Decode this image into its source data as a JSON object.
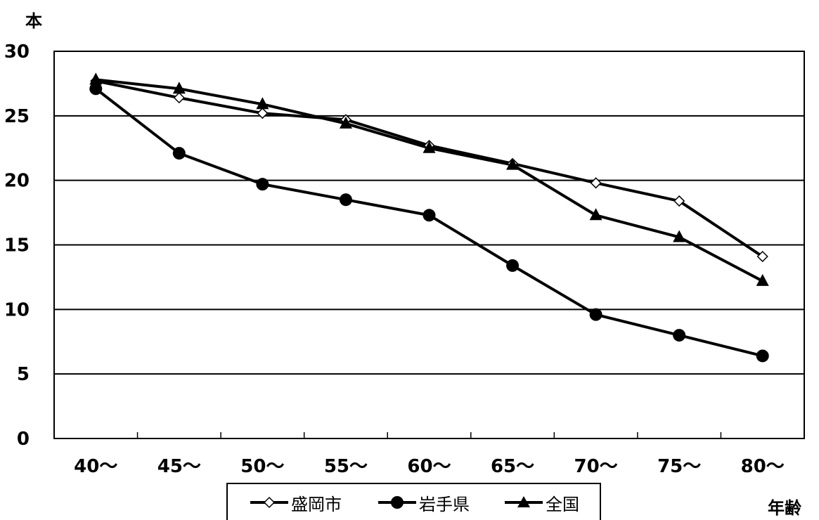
{
  "chart_data": {
    "type": "line",
    "title": "",
    "ylabel": "本",
    "xlabel": "年齢",
    "ylim": [
      0,
      30
    ],
    "yticks": [
      "0",
      "5",
      "10",
      "15",
      "20",
      "25",
      "30"
    ],
    "categories": [
      "40〜",
      "45〜",
      "50〜",
      "55〜",
      "60〜",
      "65〜",
      "70〜",
      "75〜",
      "80〜"
    ],
    "grid": "horizontal",
    "legend_position": "bottom",
    "series": [
      {
        "name": "盛岡市",
        "marker": "open-diamond",
        "color": "#000000",
        "values": [
          27.7,
          26.4,
          25.2,
          24.7,
          22.7,
          21.3,
          19.8,
          18.4,
          14.1
        ]
      },
      {
        "name": "岩手県",
        "marker": "filled-circle",
        "color": "#000000",
        "values": [
          27.1,
          22.1,
          19.7,
          18.5,
          17.3,
          13.4,
          9.6,
          8.0,
          6.4
        ]
      },
      {
        "name": "全国",
        "marker": "filled-triangle",
        "color": "#000000",
        "values": [
          27.8,
          27.1,
          25.9,
          24.4,
          22.5,
          21.2,
          17.3,
          15.6,
          12.2
        ]
      }
    ]
  }
}
